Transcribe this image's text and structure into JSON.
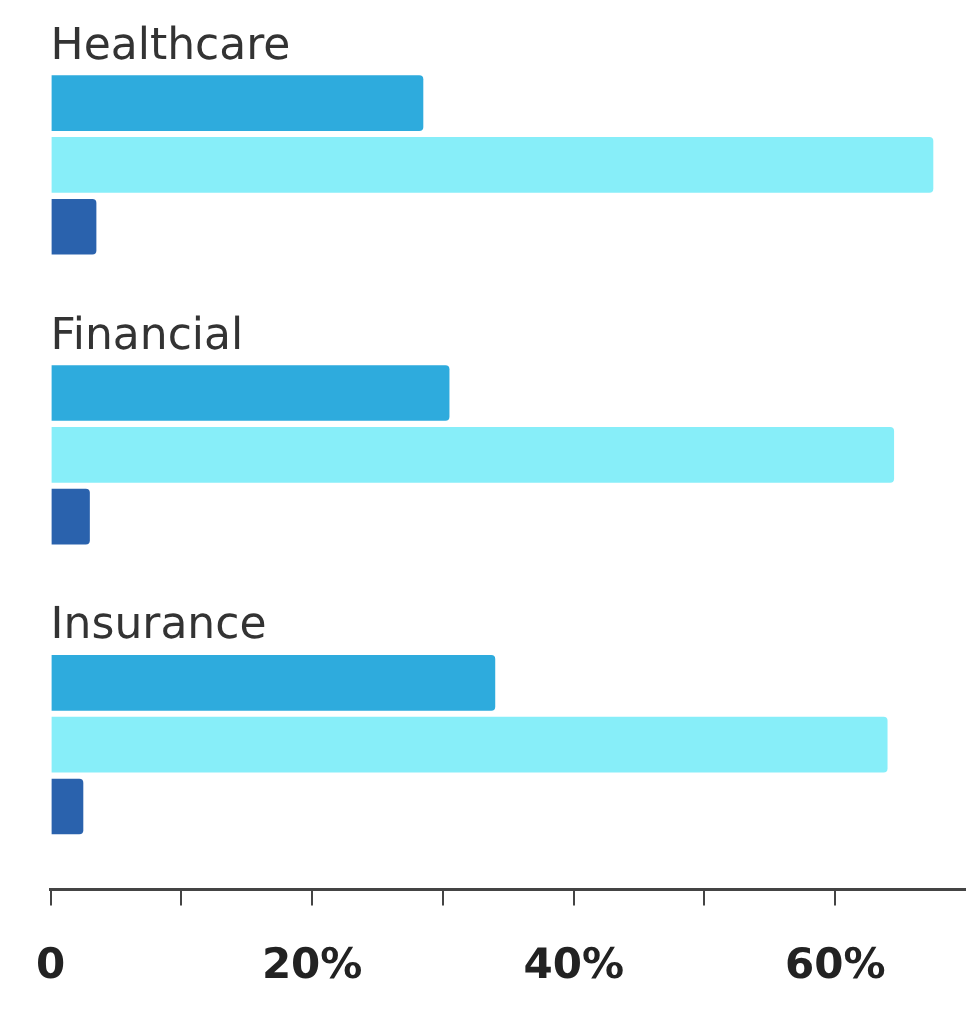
{
  "chart_data": {
    "type": "bar",
    "orientation": "horizontal",
    "categories": [
      "Healthcare",
      "Financial",
      "Insurance"
    ],
    "series": [
      {
        "color": "#2eabdd",
        "values": [
          28.5,
          30.5,
          34
        ]
      },
      {
        "color": "#87eef9",
        "values": [
          67.5,
          64.5,
          64
        ]
      },
      {
        "color": "#2a62ad",
        "values": [
          3.5,
          3,
          2.5
        ]
      }
    ],
    "xlim": [
      0,
      70
    ],
    "xticks": [
      {
        "value": 0,
        "label": "0"
      },
      {
        "value": 10,
        "label": null
      },
      {
        "value": 20,
        "label": "20%"
      },
      {
        "value": 30,
        "label": null
      },
      {
        "value": 40,
        "label": "40%"
      },
      {
        "value": 50,
        "label": null
      },
      {
        "value": 60,
        "label": "60%"
      }
    ]
  }
}
